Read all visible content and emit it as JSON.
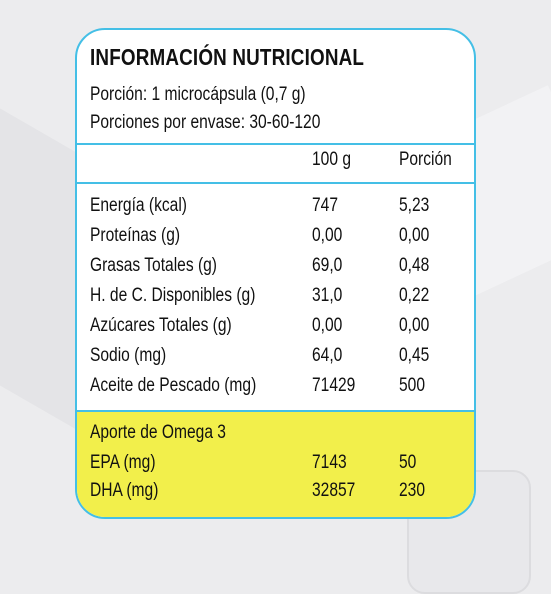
{
  "label": {
    "title": "INFORMACIÓN NUTRICIONAL",
    "serving_size": "Porción: 1 microcápsula (0,7 g)",
    "servings_per_container": "Porciones por envase: 30-60-120",
    "column_headers": [
      "100 g",
      "Porción"
    ],
    "rows": [
      {
        "name": "Energía (kcal)",
        "per100": "747",
        "portion": "5,23"
      },
      {
        "name": "Proteínas (g)",
        "per100": "0,00",
        "portion": "0,00"
      },
      {
        "name": "Grasas Totales (g)",
        "per100": "69,0",
        "portion": "0,48"
      },
      {
        "name": "H. de C. Disponibles (g)",
        "per100": "31,0",
        "portion": "0,22"
      },
      {
        "name": "Azúcares Totales (g)",
        "per100": "0,00",
        "portion": "0,00"
      },
      {
        "name": "Sodio (mg)",
        "per100": "64,0",
        "portion": "0,45"
      },
      {
        "name": "Aceite de Pescado (mg)",
        "per100": "71429",
        "portion": "500"
      }
    ],
    "omega_section": {
      "heading": "Aporte de Omega 3",
      "rows": [
        {
          "name": "EPA (mg)",
          "per100": "7143",
          "portion": "50"
        },
        {
          "name": "DHA (mg)",
          "per100": "32857",
          "portion": "230"
        }
      ]
    },
    "border_color": "#44bfe6",
    "highlight_color": "#f2ef4b"
  }
}
